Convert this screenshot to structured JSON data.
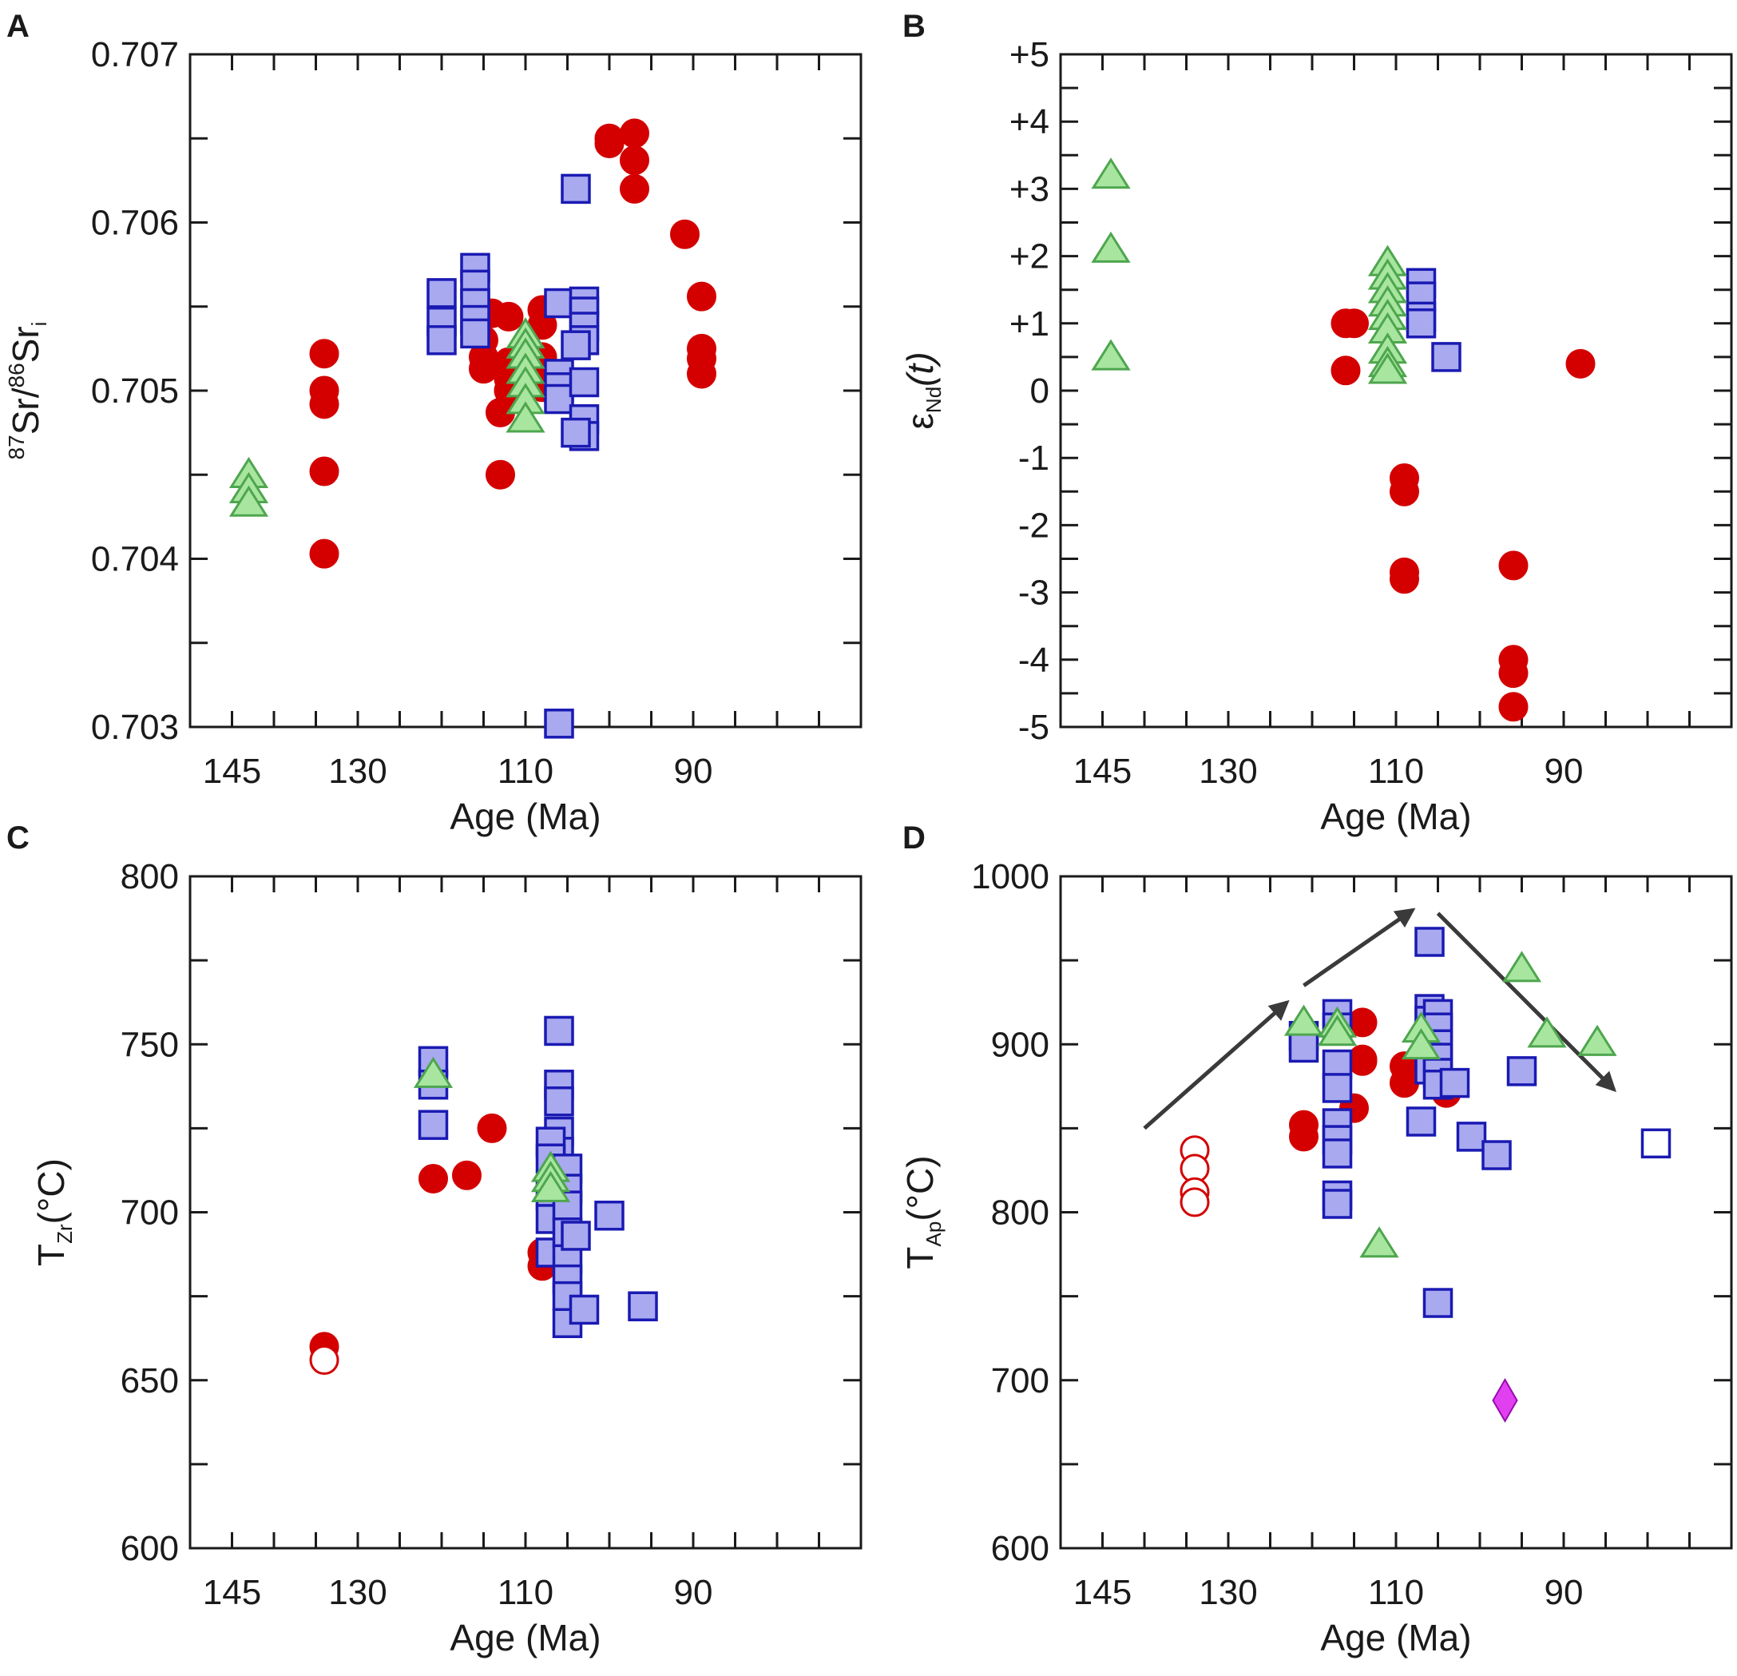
{
  "chart_data": [
    {
      "panel": "A",
      "type": "scatter",
      "xlabel": "Age (Ma)",
      "ylabel": {
        "sup1": "87",
        "t1": "Sr/",
        "sup2": "86",
        "t2": "Sr",
        "sub": "i"
      },
      "xlim": [
        150,
        70
      ],
      "ylim": [
        0.703,
        0.707
      ],
      "xticks": [
        145,
        130,
        110,
        90
      ],
      "yticks": [
        0.703,
        0.704,
        0.705,
        0.706,
        0.707
      ],
      "ytick_labels": [
        "0.703",
        "0.704",
        "0.705",
        "0.706",
        "0.707"
      ],
      "series": [
        {
          "name": "red-filled-circles",
          "marker": "circle",
          "filled": true,
          "color": "#d40000",
          "points": [
            [
              134,
              0.70522
            ],
            [
              134,
              0.705
            ],
            [
              134,
              0.70492
            ],
            [
              134,
              0.70452
            ],
            [
              134,
              0.70403
            ],
            [
              114,
              0.70546
            ],
            [
              115,
              0.7053
            ],
            [
              115,
              0.7052
            ],
            [
              115,
              0.70513
            ],
            [
              113,
              0.70487
            ],
            [
              113,
              0.7045
            ],
            [
              112,
              0.70544
            ],
            [
              112,
              0.70517
            ],
            [
              112,
              0.70507
            ],
            [
              112,
              0.705
            ],
            [
              108,
              0.70548
            ],
            [
              108,
              0.70539
            ],
            [
              108,
              0.7052
            ],
            [
              108,
              0.7051
            ],
            [
              108,
              0.70502
            ],
            [
              100,
              0.7065
            ],
            [
              100,
              0.70647
            ],
            [
              97,
              0.70653
            ],
            [
              97,
              0.70637
            ],
            [
              97,
              0.7062
            ],
            [
              91,
              0.70593
            ],
            [
              89,
              0.70556
            ],
            [
              89,
              0.70525
            ],
            [
              89,
              0.70519
            ],
            [
              89,
              0.7051
            ]
          ]
        },
        {
          "name": "blue-squares",
          "marker": "square",
          "filled": true,
          "color": "#1a1ab3",
          "fill": "#a9a9f0",
          "points": [
            [
              120,
              0.70558
            ],
            [
              120,
              0.70541
            ],
            [
              120,
              0.7053
            ],
            [
              116,
              0.70573
            ],
            [
              116,
              0.70563
            ],
            [
              116,
              0.70552
            ],
            [
              116,
              0.70542
            ],
            [
              116,
              0.70534
            ],
            [
              104,
              0.7062
            ],
            [
              106,
              0.70552
            ],
            [
              106,
              0.7051
            ],
            [
              106,
              0.70502
            ],
            [
              106,
              0.70495
            ],
            [
              103,
              0.70553
            ],
            [
              103,
              0.70547
            ],
            [
              103,
              0.70538
            ],
            [
              103,
              0.7053
            ],
            [
              103,
              0.70505
            ],
            [
              103,
              0.70483
            ],
            [
              103,
              0.70473
            ],
            [
              104,
              0.70527
            ],
            [
              104,
              0.70475
            ],
            [
              106,
              0.70302
            ]
          ]
        },
        {
          "name": "green-triangles",
          "marker": "triangle",
          "filled": true,
          "color": "#4ea64e",
          "fill": "#a8e6a0",
          "points": [
            [
              143,
              0.7045
            ],
            [
              143,
              0.70441
            ],
            [
              143,
              0.70433
            ],
            [
              110,
              0.70533
            ],
            [
              110,
              0.70527
            ],
            [
              110,
              0.70521
            ],
            [
              110,
              0.70512
            ],
            [
              110,
              0.70504
            ],
            [
              110,
              0.70494
            ],
            [
              110,
              0.70483
            ]
          ]
        }
      ]
    },
    {
      "panel": "B",
      "type": "scatter",
      "xlabel": "Age (Ma)",
      "ylabel": {
        "main": "ε",
        "sub": "Nd",
        "tail": "(t)"
      },
      "xlim": [
        150,
        70
      ],
      "ylim": [
        -5,
        5
      ],
      "xticks": [
        145,
        130,
        110,
        90
      ],
      "yticks": [
        -5,
        -4,
        -3,
        -2,
        -1,
        0,
        1,
        2,
        3,
        4,
        5
      ],
      "ytick_labels": [
        "-5",
        "-4",
        "-3",
        "-2",
        "-1",
        "0",
        "+1",
        "+2",
        "+3",
        "+4",
        "+5"
      ],
      "series": [
        {
          "name": "red-filled-circles",
          "marker": "circle",
          "filled": true,
          "color": "#d40000",
          "points": [
            [
              116,
              1.0
            ],
            [
              115,
              1.0
            ],
            [
              116,
              0.3
            ],
            [
              109,
              -1.3
            ],
            [
              109,
              -1.5
            ],
            [
              109,
              -2.7
            ],
            [
              109,
              -2.8
            ],
            [
              96,
              -2.6
            ],
            [
              96,
              -4.0
            ],
            [
              96,
              -4.2
            ],
            [
              96,
              -4.7
            ],
            [
              88,
              0.4
            ]
          ]
        },
        {
          "name": "blue-squares",
          "marker": "square",
          "filled": true,
          "color": "#1a1ab3",
          "fill": "#a9a9f0",
          "points": [
            [
              107,
              1.6
            ],
            [
              107,
              1.4
            ],
            [
              107,
              1.1
            ],
            [
              107,
              1.0
            ],
            [
              104,
              0.5
            ]
          ]
        },
        {
          "name": "green-triangles",
          "marker": "triangle",
          "filled": true,
          "color": "#4ea64e",
          "fill": "#a8e6a0",
          "points": [
            [
              144,
              3.2
            ],
            [
              144,
              2.1
            ],
            [
              144,
              0.5
            ],
            [
              111,
              1.9
            ],
            [
              111,
              1.7
            ],
            [
              111,
              1.5
            ],
            [
              111,
              1.3
            ],
            [
              111,
              1.1
            ],
            [
              111,
              0.9
            ],
            [
              111,
              0.6
            ],
            [
              111,
              0.4
            ],
            [
              111,
              0.3
            ]
          ]
        }
      ]
    },
    {
      "panel": "C",
      "type": "scatter",
      "xlabel": "Age (Ma)",
      "ylabel": {
        "main": "T",
        "sub": "Zr",
        "tail": "(°C)"
      },
      "xlim": [
        150,
        70
      ],
      "ylim": [
        600,
        800
      ],
      "xticks": [
        145,
        130,
        110,
        90
      ],
      "yticks": [
        600,
        650,
        700,
        750,
        800
      ],
      "ytick_labels": [
        "600",
        "650",
        "700",
        "750",
        "800"
      ],
      "series": [
        {
          "name": "red-filled-circles",
          "marker": "circle",
          "filled": true,
          "color": "#d40000",
          "points": [
            [
              134,
              660
            ],
            [
              121,
              710
            ],
            [
              117,
              711
            ],
            [
              114,
              725
            ],
            [
              108,
              688
            ],
            [
              108,
              684
            ]
          ]
        },
        {
          "name": "red-open-circles",
          "marker": "circle",
          "filled": false,
          "color": "#d40000",
          "points": [
            [
              134,
              656
            ]
          ]
        },
        {
          "name": "blue-squares",
          "marker": "square",
          "filled": true,
          "color": "#1a1ab3",
          "fill": "#a9a9f0",
          "points": [
            [
              121,
              745
            ],
            [
              121,
              738
            ],
            [
              121,
              726
            ],
            [
              106,
              754
            ],
            [
              106,
              738
            ],
            [
              106,
              733
            ],
            [
              106,
              724
            ],
            [
              106,
              718
            ],
            [
              106,
              712
            ],
            [
              107,
              721
            ],
            [
              107,
              716
            ],
            [
              107,
              705
            ],
            [
              107,
              698
            ],
            [
              107,
              688
            ],
            [
              105,
              713
            ],
            [
              105,
              707
            ],
            [
              105,
              702
            ],
            [
              105,
              694
            ],
            [
              105,
              686
            ],
            [
              105,
              680
            ],
            [
              105,
              675
            ],
            [
              105,
              667
            ],
            [
              104,
              693
            ],
            [
              103,
              671
            ],
            [
              100,
              699
            ],
            [
              96,
              672
            ]
          ]
        },
        {
          "name": "green-triangles",
          "marker": "triangle",
          "filled": true,
          "color": "#4ea64e",
          "fill": "#a8e6a0",
          "points": [
            [
              121,
              741
            ],
            [
              107,
              713
            ],
            [
              107,
              710
            ],
            [
              107,
              707
            ]
          ]
        }
      ]
    },
    {
      "panel": "D",
      "type": "scatter",
      "xlabel": "Age (Ma)",
      "ylabel": {
        "main": "T",
        "sub": "Ap",
        "tail": "(°C)"
      },
      "xlim": [
        150,
        70
      ],
      "ylim": [
        600,
        1000
      ],
      "xticks": [
        145,
        130,
        110,
        90
      ],
      "yticks": [
        600,
        700,
        800,
        900,
        1000
      ],
      "ytick_labels": [
        "600",
        "700",
        "800",
        "900",
        "1000"
      ],
      "series": [
        {
          "name": "red-filled-circles",
          "marker": "circle",
          "filled": true,
          "color": "#d40000",
          "points": [
            [
              121,
              852
            ],
            [
              121,
              845
            ],
            [
              114,
              913
            ],
            [
              114,
              890
            ],
            [
              114,
              891
            ],
            [
              115,
              862
            ],
            [
              109,
              887
            ],
            [
              109,
              877
            ],
            [
              104,
              871
            ]
          ]
        },
        {
          "name": "red-open-circles",
          "marker": "circle",
          "filled": false,
          "color": "#d40000",
          "points": [
            [
              134,
              837
            ],
            [
              134,
              826
            ],
            [
              134,
              812
            ],
            [
              134,
              806
            ]
          ]
        },
        {
          "name": "blue-squares",
          "marker": "square",
          "filled": true,
          "color": "#1a1ab3",
          "fill": "#a9a9f0",
          "points": [
            [
              121,
              905
            ],
            [
              121,
              898
            ],
            [
              117,
              918
            ],
            [
              117,
              910
            ],
            [
              117,
              888
            ],
            [
              117,
              874
            ],
            [
              117,
              853
            ],
            [
              117,
              843
            ],
            [
              117,
              835
            ],
            [
              117,
              810
            ],
            [
              117,
              805
            ],
            [
              106,
              961
            ],
            [
              106,
              921
            ],
            [
              106,
              914
            ],
            [
              106,
              905
            ],
            [
              106,
              900
            ],
            [
              106,
              893
            ],
            [
              106,
              885
            ],
            [
              105,
              918
            ],
            [
              105,
              910
            ],
            [
              105,
              900
            ],
            [
              105,
              892
            ],
            [
              105,
              883
            ],
            [
              105,
              876
            ],
            [
              107,
              854
            ],
            [
              103,
              877
            ],
            [
              101,
              845
            ],
            [
              98,
              834
            ],
            [
              95,
              884
            ],
            [
              105,
              746
            ]
          ]
        },
        {
          "name": "blue-open-squares",
          "marker": "square",
          "filled": false,
          "color": "#1a1ab3",
          "points": [
            [
              79,
              841
            ]
          ]
        },
        {
          "name": "green-triangles",
          "marker": "triangle",
          "filled": true,
          "color": "#4ea64e",
          "fill": "#a8e6a0",
          "points": [
            [
              121,
              913
            ],
            [
              117,
              912
            ],
            [
              117,
              907
            ],
            [
              107,
              909
            ],
            [
              107,
              899
            ],
            [
              112,
              781
            ],
            [
              95,
              945
            ],
            [
              92,
              906
            ],
            [
              86,
              901
            ]
          ]
        },
        {
          "name": "magenta-diamond",
          "marker": "diamond",
          "filled": true,
          "color": "#9a0ab0",
          "fill": "#e040f0",
          "points": [
            [
              97,
              688
            ]
          ]
        }
      ],
      "arrows": [
        {
          "from": [
            140,
            850
          ],
          "to": [
            123,
            925
          ]
        },
        {
          "from": [
            121,
            935
          ],
          "to": [
            108,
            980
          ]
        },
        {
          "from": [
            105,
            978
          ],
          "to": [
            84,
            873
          ]
        }
      ]
    }
  ]
}
